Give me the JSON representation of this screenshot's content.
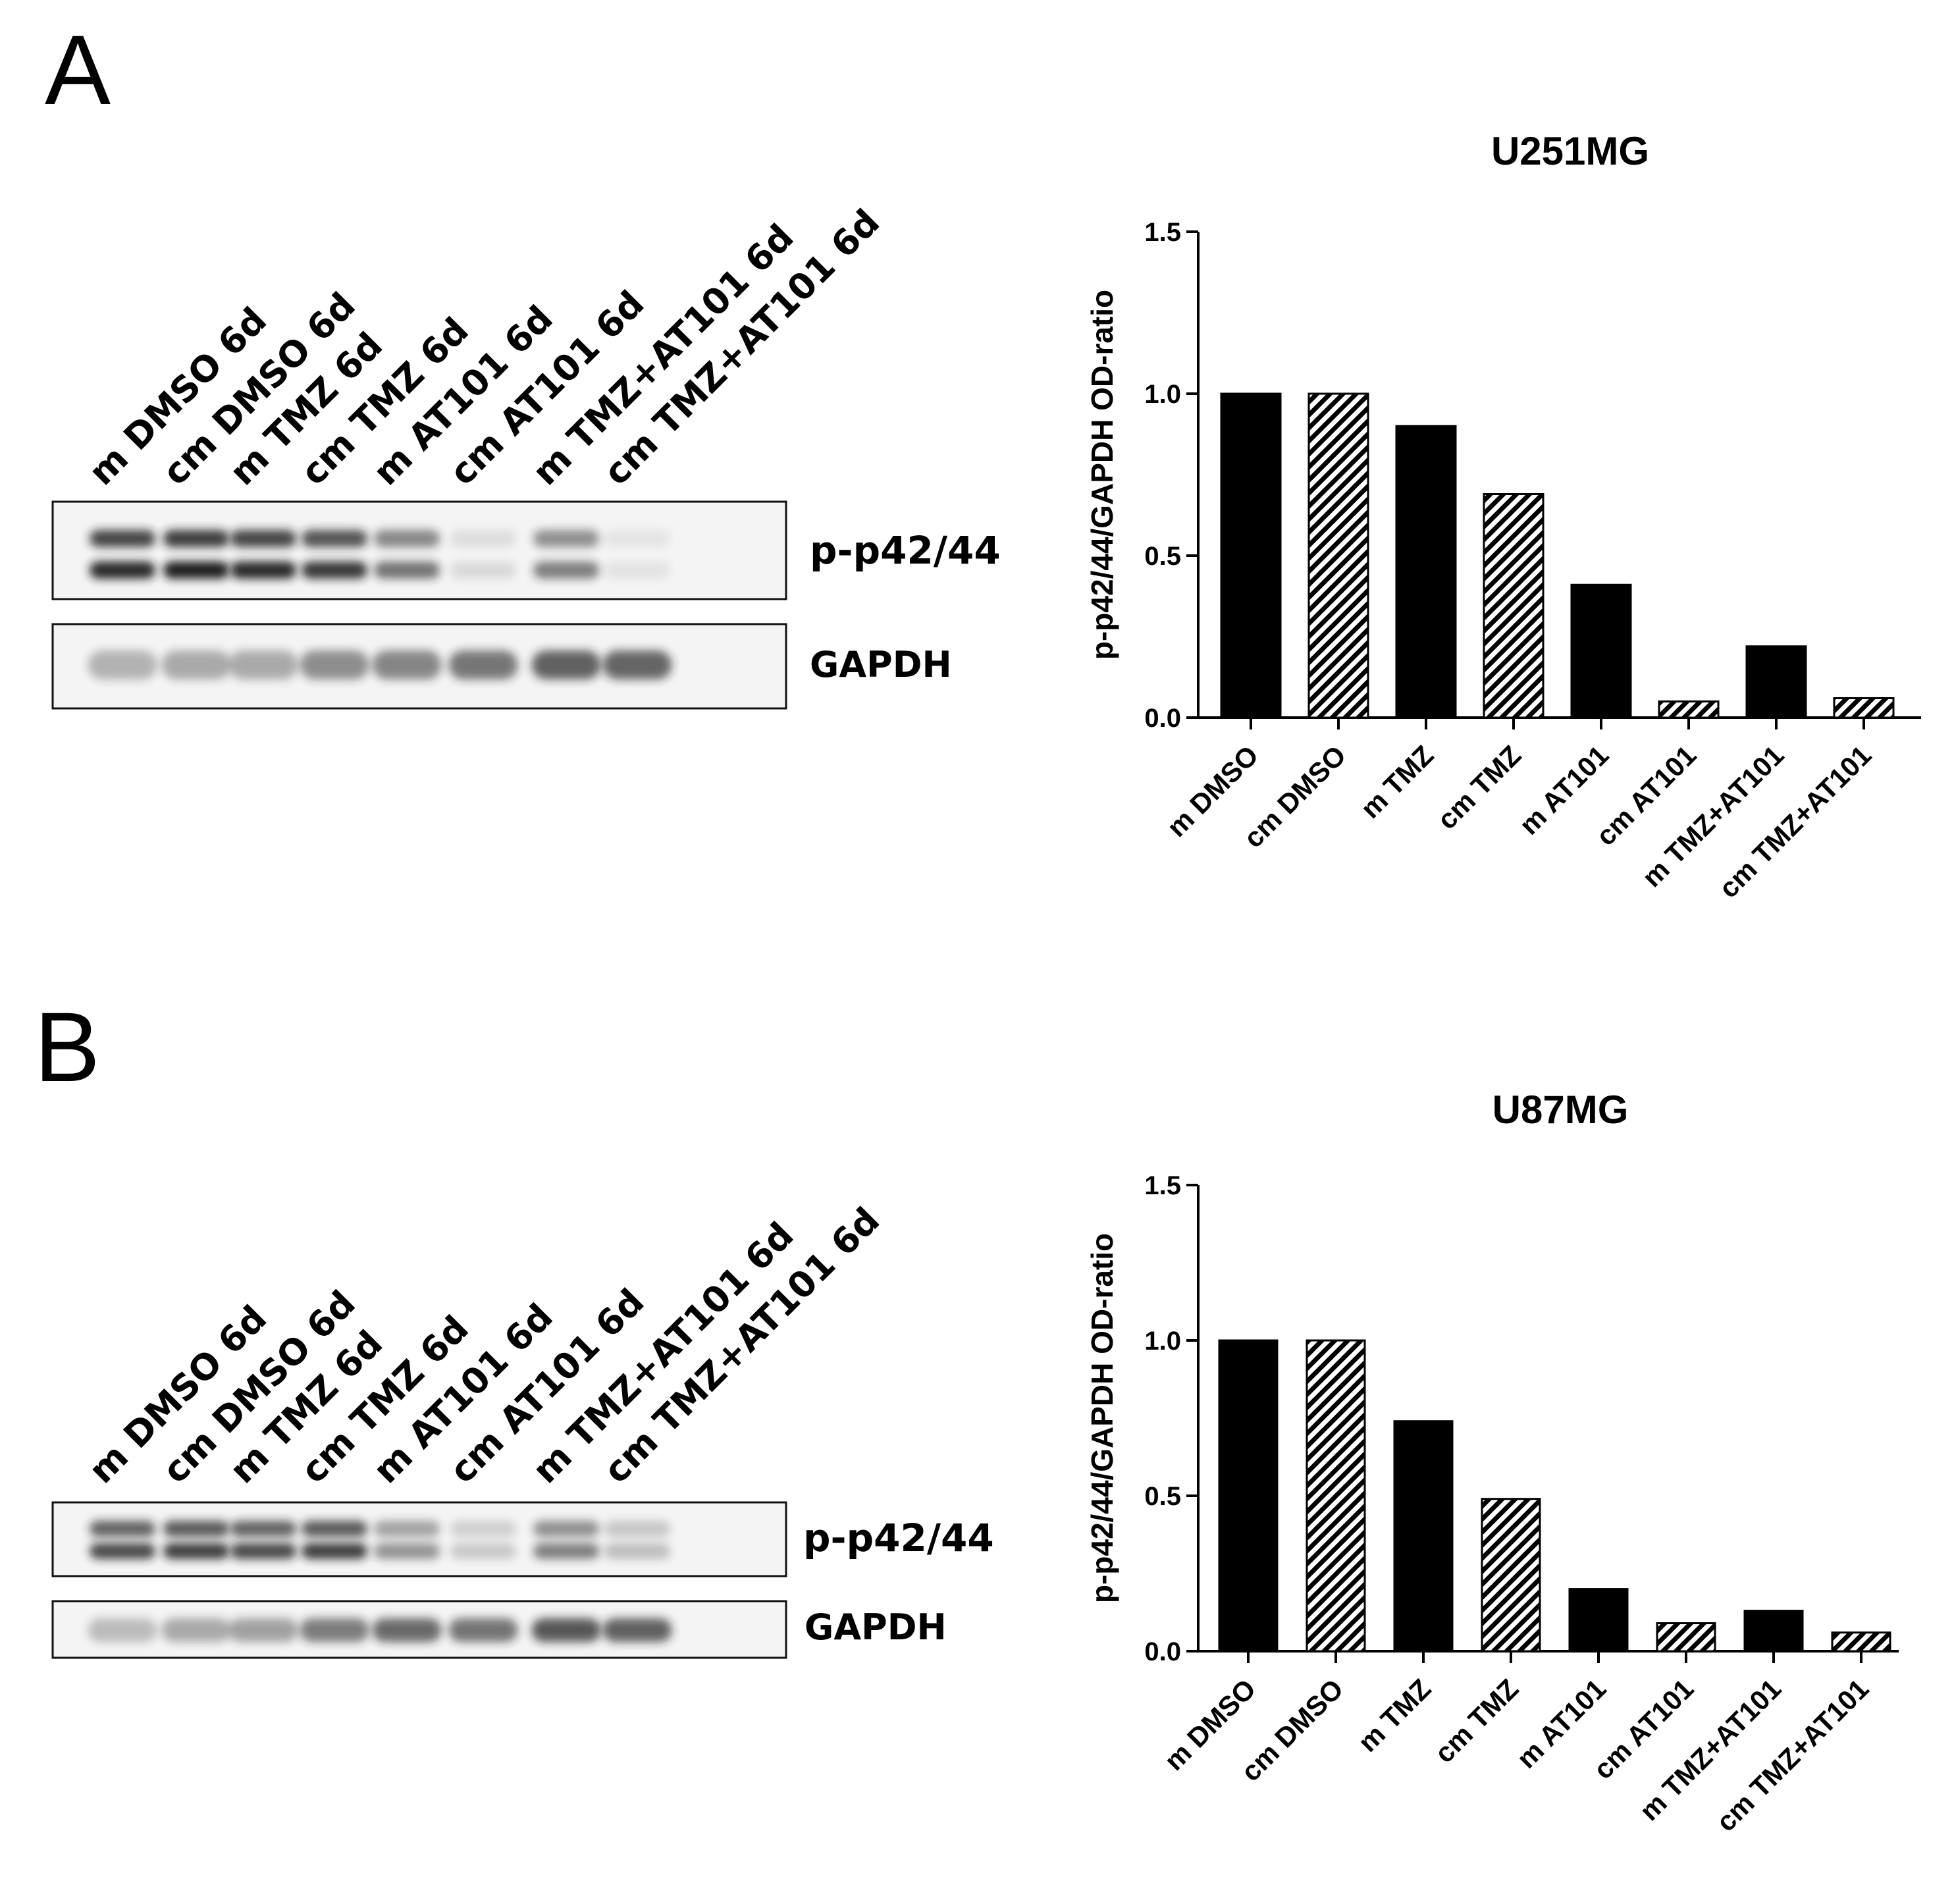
{
  "panels": [
    {
      "letter": "A",
      "lanes": [
        "m DMSO 6d",
        "cm DMSO 6d",
        "m TMZ 6d",
        "cm TMZ 6d",
        "m AT101 6d",
        "cm AT101 6d",
        "m TMZ+AT101 6d",
        "cm TMZ+AT101 6d"
      ],
      "blot_labels": {
        "target": "p-p42/44",
        "control": "GAPDH"
      },
      "target_intensity": [
        0.95,
        1.0,
        0.95,
        0.88,
        0.6,
        0.12,
        0.55,
        0.08
      ],
      "control_intensity": [
        0.35,
        0.4,
        0.4,
        0.55,
        0.6,
        0.68,
        0.8,
        0.78
      ]
    },
    {
      "letter": "B",
      "lanes": [
        "m DMSO 6d",
        "cm DMSO 6d",
        "m TMZ 6d",
        "cm TMZ 6d",
        "m AT101 6d",
        "cm AT101 6d",
        "m TMZ+AT101 6d",
        "cm TMZ+AT101 6d"
      ],
      "blot_labels": {
        "target": "p-p42/44",
        "control": "GAPDH"
      },
      "target_intensity": [
        0.8,
        0.85,
        0.8,
        0.85,
        0.45,
        0.2,
        0.55,
        0.25
      ],
      "control_intensity": [
        0.3,
        0.4,
        0.45,
        0.65,
        0.75,
        0.7,
        0.85,
        0.8
      ]
    }
  ],
  "chart_data": [
    {
      "type": "bar",
      "title": "U251MG",
      "ylabel": "p-p42/44/GAPDH OD-ratio",
      "xlabel": "",
      "ylim": [
        0,
        1.5
      ],
      "yticks": [
        "0.0",
        "0.5",
        "1.0",
        "1.5"
      ],
      "categories": [
        "m DMSO",
        "cm DMSO",
        "m TMZ",
        "cm TMZ",
        "m AT101",
        "cm AT101",
        "m TMZ+AT101",
        "cm TMZ+AT101"
      ],
      "values": [
        1.0,
        1.0,
        0.9,
        0.69,
        0.41,
        0.05,
        0.22,
        0.06
      ],
      "fill": [
        "solid",
        "hatched",
        "solid",
        "hatched",
        "solid",
        "hatched",
        "solid",
        "hatched"
      ],
      "grid": false,
      "legend": "none"
    },
    {
      "type": "bar",
      "title": "U87MG",
      "ylabel": "p-p42/44/GAPDH OD-ratio",
      "xlabel": "",
      "ylim": [
        0,
        1.5
      ],
      "yticks": [
        "0.0",
        "0.5",
        "1.0",
        "1.5"
      ],
      "categories": [
        "m DMSO",
        "cm DMSO",
        "m TMZ",
        "cm TMZ",
        "m AT101",
        "cm AT101",
        "m TMZ+AT101",
        "cm TMZ+AT101"
      ],
      "values": [
        1.0,
        1.0,
        0.74,
        0.49,
        0.2,
        0.09,
        0.13,
        0.06
      ],
      "fill": [
        "solid",
        "hatched",
        "solid",
        "hatched",
        "solid",
        "hatched",
        "solid",
        "hatched"
      ],
      "grid": false,
      "legend": "none"
    }
  ],
  "colors": {
    "bar": "#000000",
    "hatch_bg": "#ffffff",
    "blot_bg": "#f4f4f4",
    "band": "#1e1e1e"
  }
}
